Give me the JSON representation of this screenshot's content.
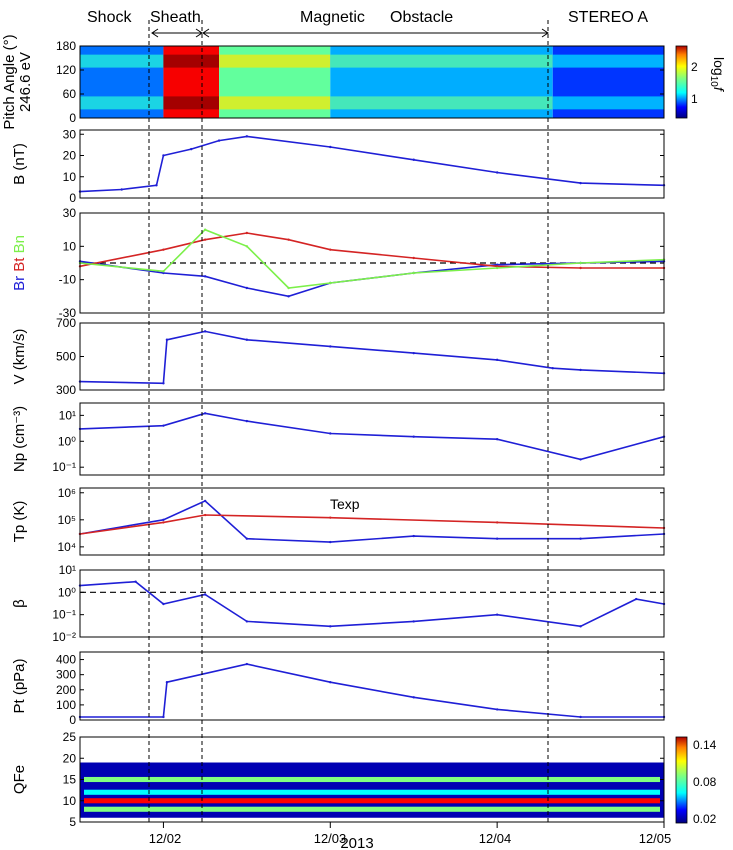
{
  "figure": {
    "region_labels": {
      "shock": "Shock",
      "sheath": "Sheath",
      "magnetic": "Magnetic",
      "obstacle": "Obstacle",
      "spacecraft": "STEREO  A"
    },
    "x_axis": {
      "ticks": [
        "12/02",
        "12/03",
        "12/04",
        "12/05"
      ],
      "label": "2013"
    },
    "colorbar_top": {
      "label": "log10f",
      "ticks": [
        "2",
        "1"
      ]
    },
    "colorbar_bottom": {
      "ticks": [
        "0.14",
        "0.08",
        "0.02"
      ]
    }
  },
  "colors": {
    "series_blue": "#1f1fd6",
    "series_red": "#d42424",
    "series_green": "#7cf04a",
    "axis": "#000000"
  },
  "chart_data": [
    {
      "type": "heatmap",
      "ylabel": "Pitch Angle (°)\n246.6 eV",
      "ylim": [
        0,
        180
      ],
      "yticks": [
        0,
        60,
        120,
        180
      ],
      "x_range": [
        "2013-12-01 12:00",
        "2013-12-05 00:00"
      ],
      "colorbar": {
        "label": "log10f",
        "range": [
          0.6,
          2.3
        ],
        "ticks": [
          1,
          2
        ]
      },
      "regions": [
        {
          "from": "2013-12-01 12:00",
          "to": "2013-12-02 00:00",
          "level": 1.0
        },
        {
          "from": "2013-12-02 00:00",
          "to": "2013-12-02 08:00",
          "level": 2.1
        },
        {
          "from": "2013-12-02 08:00",
          "to": "2013-12-03 00:00",
          "level": 1.4
        },
        {
          "from": "2013-12-03 00:00",
          "to": "2013-12-04 08:00",
          "level": 1.1
        },
        {
          "from": "2013-12-04 08:00",
          "to": "2013-12-05 00:00",
          "level": 0.9
        }
      ]
    },
    {
      "type": "line",
      "ylabel": "B (nT)",
      "ylim": [
        0,
        32
      ],
      "yticks": [
        0,
        10,
        20,
        30
      ],
      "series": [
        {
          "x": [
            "2013-12-01 12:00",
            "2013-12-01 18:00",
            "2013-12-01 23:00",
            "2013-12-02 00:00",
            "2013-12-02 04:00",
            "2013-12-02 08:00",
            "2013-12-02 12:00",
            "2013-12-03 00:00",
            "2013-12-03 12:00",
            "2013-12-04 00:00",
            "2013-12-04 12:00",
            "2013-12-05 00:00"
          ],
          "y": [
            3,
            4,
            6,
            20,
            23,
            27,
            29,
            24,
            18,
            12,
            7,
            6
          ]
        }
      ]
    },
    {
      "type": "line",
      "ylabel_parts": [
        "Br",
        "Bt",
        "Bn"
      ],
      "ylim": [
        -30,
        30
      ],
      "yticks": [
        -30,
        -10,
        10,
        30
      ],
      "series": [
        {
          "name": "Br",
          "x": [
            "2013-12-01 12:00",
            "2013-12-02 00:00",
            "2013-12-02 06:00",
            "2013-12-02 12:00",
            "2013-12-02 18:00",
            "2013-12-03 00:00",
            "2013-12-03 12:00",
            "2013-12-04 00:00",
            "2013-12-04 12:00",
            "2013-12-05 00:00"
          ],
          "y": [
            1,
            -6,
            -8,
            -15,
            -20,
            -12,
            -6,
            -1,
            0,
            1
          ]
        },
        {
          "name": "Bt",
          "x": [
            "2013-12-01 12:00",
            "2013-12-02 00:00",
            "2013-12-02 06:00",
            "2013-12-02 12:00",
            "2013-12-02 18:00",
            "2013-12-03 00:00",
            "2013-12-03 12:00",
            "2013-12-04 00:00",
            "2013-12-04 12:00",
            "2013-12-05 00:00"
          ],
          "y": [
            -2,
            8,
            14,
            18,
            14,
            8,
            3,
            -2,
            -3,
            -3
          ]
        },
        {
          "name": "Bn",
          "x": [
            "2013-12-01 12:00",
            "2013-12-02 00:00",
            "2013-12-02 06:00",
            "2013-12-02 12:00",
            "2013-12-02 18:00",
            "2013-12-03 00:00",
            "2013-12-03 12:00",
            "2013-12-04 00:00",
            "2013-12-04 12:00",
            "2013-12-05 00:00"
          ],
          "y": [
            0,
            -5,
            20,
            10,
            -15,
            -12,
            -6,
            -3,
            0,
            2
          ]
        }
      ]
    },
    {
      "type": "line",
      "ylabel": "V (km/s)",
      "ylim": [
        300,
        700
      ],
      "yticks": [
        300,
        500,
        700
      ],
      "series": [
        {
          "x": [
            "2013-12-01 12:00",
            "2013-12-02 00:00",
            "2013-12-02 00:30",
            "2013-12-02 06:00",
            "2013-12-02 12:00",
            "2013-12-03 00:00",
            "2013-12-03 12:00",
            "2013-12-04 00:00",
            "2013-12-04 08:00",
            "2013-12-04 12:00",
            "2013-12-05 00:00"
          ],
          "y": [
            350,
            340,
            600,
            650,
            600,
            560,
            520,
            480,
            430,
            420,
            400
          ]
        }
      ]
    },
    {
      "type": "line",
      "ylabel": "Np (cm⁻³)",
      "yscale": "log",
      "ylim": [
        0.05,
        30
      ],
      "yticks": [
        "10⁻¹",
        "10⁰",
        "10¹"
      ],
      "series": [
        {
          "x": [
            "2013-12-01 12:00",
            "2013-12-02 00:00",
            "2013-12-02 06:00",
            "2013-12-02 12:00",
            "2013-12-03 00:00",
            "2013-12-03 12:00",
            "2013-12-04 00:00",
            "2013-12-04 12:00",
            "2013-12-05 00:00"
          ],
          "y": [
            3,
            4,
            12,
            6,
            2,
            1.5,
            1.2,
            0.2,
            1.5
          ]
        }
      ]
    },
    {
      "type": "line",
      "ylabel": "Tp (K)",
      "yscale": "log",
      "ylim": [
        5000,
        1500000
      ],
      "yticks": [
        "10⁴",
        "10⁵",
        "10⁶"
      ],
      "annotation": "Texp",
      "series": [
        {
          "name": "Tp",
          "x": [
            "2013-12-01 12:00",
            "2013-12-02 00:00",
            "2013-12-02 06:00",
            "2013-12-02 12:00",
            "2013-12-03 00:00",
            "2013-12-03 12:00",
            "2013-12-04 00:00",
            "2013-12-04 12:00",
            "2013-12-05 00:00"
          ],
          "y": [
            30000,
            100000,
            500000,
            20000,
            15000,
            25000,
            20000,
            20000,
            30000
          ]
        },
        {
          "name": "Texp",
          "x": [
            "2013-12-01 12:00",
            "2013-12-02 00:00",
            "2013-12-02 06:00",
            "2013-12-03 00:00",
            "2013-12-04 00:00",
            "2013-12-05 00:00"
          ],
          "y": [
            30000,
            80000,
            150000,
            120000,
            80000,
            50000
          ]
        }
      ]
    },
    {
      "type": "line",
      "ylabel": "β",
      "yscale": "log",
      "ylim": [
        0.01,
        10
      ],
      "yticks": [
        "10⁻²",
        "10⁻¹",
        "10⁰",
        "10¹"
      ],
      "reference_line": 1,
      "series": [
        {
          "x": [
            "2013-12-01 12:00",
            "2013-12-01 20:00",
            "2013-12-02 00:00",
            "2013-12-02 06:00",
            "2013-12-02 12:00",
            "2013-12-03 00:00",
            "2013-12-03 12:00",
            "2013-12-04 00:00",
            "2013-12-04 12:00",
            "2013-12-04 20:00",
            "2013-12-05 00:00"
          ],
          "y": [
            2,
            3,
            0.3,
            0.8,
            0.05,
            0.03,
            0.05,
            0.1,
            0.03,
            0.5,
            0.3
          ]
        }
      ]
    },
    {
      "type": "line",
      "ylabel": "Pt (pPa)",
      "ylim": [
        0,
        450
      ],
      "yticks": [
        0,
        100,
        200,
        300,
        400
      ],
      "series": [
        {
          "x": [
            "2013-12-01 12:00",
            "2013-12-02 00:00",
            "2013-12-02 00:30",
            "2013-12-02 12:00",
            "2013-12-03 00:00",
            "2013-12-03 12:00",
            "2013-12-04 00:00",
            "2013-12-04 12:00",
            "2013-12-05 00:00"
          ],
          "y": [
            20,
            20,
            250,
            370,
            250,
            150,
            70,
            20,
            20
          ]
        }
      ]
    },
    {
      "type": "heatmap",
      "ylabel": "QFe",
      "ylim": [
        5,
        25
      ],
      "yticks": [
        5,
        10,
        15,
        20,
        25
      ],
      "colorbar": {
        "range": [
          0.0,
          0.16
        ],
        "ticks": [
          0.02,
          0.08,
          0.14
        ]
      },
      "bands": [
        {
          "charge_state": 8,
          "level": 0.08
        },
        {
          "charge_state": 10,
          "level": 0.14
        },
        {
          "charge_state": 12,
          "level": 0.06
        },
        {
          "charge_state": 15,
          "level": 0.08
        }
      ]
    }
  ]
}
